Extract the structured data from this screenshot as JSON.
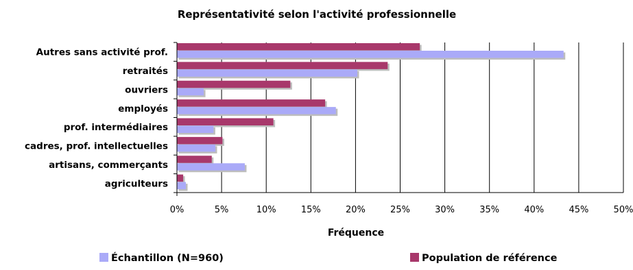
{
  "chart_data": {
    "type": "bar",
    "orientation": "horizontal",
    "title": "Représentativité selon l'activité professionnelle",
    "xlabel": "Fréquence",
    "ylabel": "",
    "categories": [
      "Autres sans activité prof.",
      "retraités",
      "ouvriers",
      "employés",
      "prof. intermédiaires",
      "cadres, prof. intellectuelles",
      "artisans, commerçants",
      "agriculteurs"
    ],
    "series": [
      {
        "name": "Population de référence",
        "color": "#a8386b",
        "values": [
          27.2,
          23.6,
          12.7,
          16.6,
          10.8,
          5.1,
          3.9,
          0.7
        ]
      },
      {
        "name": "Échantillon (N=960)",
        "color": "#aaaaf8",
        "values": [
          43.3,
          20.2,
          3.0,
          17.8,
          4.1,
          4.3,
          7.6,
          1.0
        ]
      }
    ],
    "xlim": [
      0,
      50
    ],
    "xticks": [
      "0%",
      "5%",
      "10%",
      "15%",
      "20%",
      "25%",
      "30%",
      "35%",
      "40%",
      "45%",
      "50%"
    ],
    "grid": true,
    "legend": [
      {
        "label": "Échantillon (N=960)",
        "color": "#aaaaf8"
      },
      {
        "label": "Population de référence",
        "color": "#a8386b"
      }
    ],
    "legend_position": "bottom"
  }
}
